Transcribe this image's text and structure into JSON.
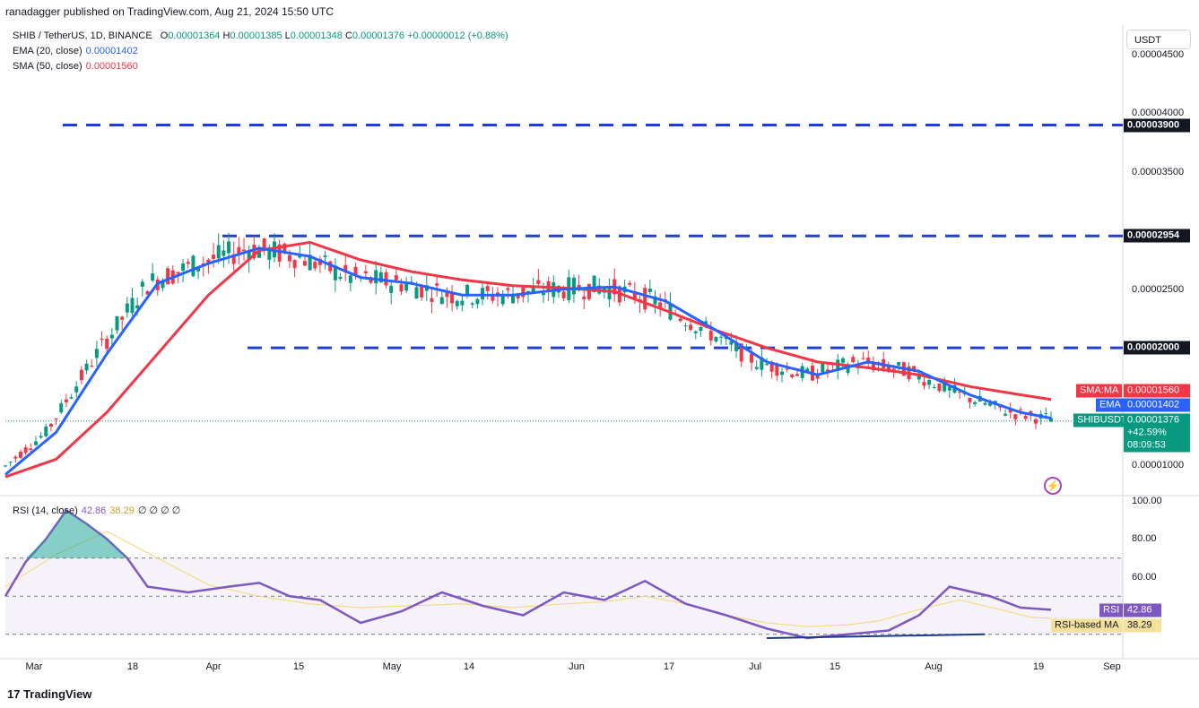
{
  "header": {
    "published": "ranadagger published on TradingView.com, Aug 21, 2024 15:50 UTC"
  },
  "legend": {
    "symbol": "SHIB / TetherUS, 1D, BINANCE",
    "o_label": "O",
    "o": "0.00001364",
    "h_label": "H",
    "h": "0.00001385",
    "l_label": "L",
    "l": "0.00001348",
    "c_label": "C",
    "c": "0.00001376",
    "change": "+0.00000012 (+0.88%)",
    "ema_label": "EMA (20, close)",
    "ema_value": "0.00001402",
    "sma_label": "SMA (50, close)",
    "sma_value": "0.00001560",
    "rsi_label": "RSI (14, close)",
    "rsi_value": "42.86",
    "rsi_ma_value": "38.29",
    "rsi_extra": "∅ ∅ ∅ ∅"
  },
  "currency_button": "USDT",
  "price_axis": [
    "0.00004500",
    "0.00004000",
    "0.00003500",
    "0.00002500",
    "0.00001000"
  ],
  "rsi_axis": [
    "100.00",
    "80.00",
    "60.00"
  ],
  "level_tags": [
    "0.00003900",
    "0.00002954",
    "0.00002000"
  ],
  "value_tags": {
    "sma_name": "SMA:MA",
    "sma": "0.00001560",
    "ema_name": "EMA",
    "ema": "0.00001402",
    "sym_name": "SHIBUSDT",
    "sym": "0.00001376",
    "sym_change": "+42.59%",
    "countdown": "08:09:53",
    "rsi_name": "RSI",
    "rsi": "42.86",
    "rsima_name": "RSI-based MA",
    "rsima": "38.29"
  },
  "x_axis": [
    "Mar",
    "18",
    "Apr",
    "15",
    "May",
    "14",
    "Jun",
    "17",
    "Jul",
    "15",
    "Aug",
    "19",
    "Sep"
  ],
  "footer": {
    "brand": "TradingView"
  },
  "colors": {
    "up": "#089981",
    "down": "#f23645",
    "ema": "#2962ff",
    "sma": "#f23645",
    "level": "#1e3fd0",
    "rsi": "#7e57c2",
    "rsi_ma": "#f5d76e"
  },
  "chart_data": {
    "type": "candlestick",
    "title": "SHIB / TetherUS, 1D, BINANCE",
    "y_unit": "USDT",
    "horizontal_levels": [
      3.9e-05,
      2.954e-05,
      2e-05
    ],
    "ema_20_last": 1.402e-05,
    "sma_50_last": 1.56e-05,
    "last_close": 1.376e-05,
    "rsi_levels": [
      70,
      50,
      30
    ],
    "rsi_last": 42.86,
    "rsi_ma_last": 38.29,
    "ema_path": [
      [
        0,
        9.2e-06
      ],
      [
        10,
        1.28e-05
      ],
      [
        20,
        1.95e-05
      ],
      [
        30,
        2.55e-05
      ],
      [
        40,
        2.72e-05
      ],
      [
        50,
        2.85e-05
      ],
      [
        60,
        2.78e-05
      ],
      [
        70,
        2.6e-05
      ],
      [
        80,
        2.55e-05
      ],
      [
        90,
        2.45e-05
      ],
      [
        100,
        2.45e-05
      ],
      [
        110,
        2.5e-05
      ],
      [
        120,
        2.52e-05
      ],
      [
        130,
        2.4e-05
      ],
      [
        140,
        2.15e-05
      ],
      [
        150,
        1.88e-05
      ],
      [
        160,
        1.77e-05
      ],
      [
        170,
        1.88e-05
      ],
      [
        180,
        1.8e-05
      ],
      [
        190,
        1.6e-05
      ],
      [
        200,
        1.45e-05
      ],
      [
        206,
        1.4e-05
      ]
    ],
    "sma_path": [
      [
        0,
        9e-06
      ],
      [
        10,
        1.05e-05
      ],
      [
        20,
        1.45e-05
      ],
      [
        30,
        1.95e-05
      ],
      [
        40,
        2.45e-05
      ],
      [
        50,
        2.83e-05
      ],
      [
        60,
        2.9e-05
      ],
      [
        70,
        2.75e-05
      ],
      [
        80,
        2.65e-05
      ],
      [
        90,
        2.58e-05
      ],
      [
        100,
        2.53e-05
      ],
      [
        110,
        2.51e-05
      ],
      [
        120,
        2.48e-05
      ],
      [
        130,
        2.32e-05
      ],
      [
        140,
        2.15e-05
      ],
      [
        150,
        2e-05
      ],
      [
        160,
        1.88e-05
      ],
      [
        170,
        1.83e-05
      ],
      [
        180,
        1.77e-05
      ],
      [
        190,
        1.67e-05
      ],
      [
        200,
        1.6e-05
      ],
      [
        206,
        1.56e-05
      ]
    ],
    "rsi_path": [
      [
        0,
        50
      ],
      [
        4,
        68
      ],
      [
        8,
        80
      ],
      [
        12,
        95
      ],
      [
        16,
        88
      ],
      [
        20,
        80
      ],
      [
        24,
        70
      ],
      [
        28,
        55
      ],
      [
        36,
        52
      ],
      [
        44,
        55
      ],
      [
        50,
        57
      ],
      [
        56,
        50
      ],
      [
        62,
        48
      ],
      [
        70,
        36
      ],
      [
        78,
        42
      ],
      [
        86,
        52
      ],
      [
        94,
        45
      ],
      [
        102,
        40
      ],
      [
        110,
        52
      ],
      [
        118,
        48
      ],
      [
        126,
        58
      ],
      [
        134,
        46
      ],
      [
        142,
        40
      ],
      [
        150,
        33
      ],
      [
        158,
        28
      ],
      [
        166,
        30
      ],
      [
        174,
        32
      ],
      [
        180,
        40
      ],
      [
        186,
        55
      ],
      [
        194,
        50
      ],
      [
        200,
        44
      ],
      [
        206,
        42.86
      ]
    ],
    "rsi_ma_path": [
      [
        0,
        55
      ],
      [
        10,
        72
      ],
      [
        20,
        84
      ],
      [
        30,
        70
      ],
      [
        40,
        56
      ],
      [
        50,
        50
      ],
      [
        60,
        46
      ],
      [
        70,
        44
      ],
      [
        80,
        45
      ],
      [
        90,
        46
      ],
      [
        100,
        44
      ],
      [
        110,
        46
      ],
      [
        118,
        47
      ],
      [
        126,
        50
      ],
      [
        134,
        46
      ],
      [
        142,
        40
      ],
      [
        150,
        36
      ],
      [
        158,
        34
      ],
      [
        166,
        35
      ],
      [
        172,
        37
      ],
      [
        180,
        43
      ],
      [
        188,
        48
      ],
      [
        196,
        43
      ],
      [
        202,
        39
      ],
      [
        206,
        38.29
      ]
    ],
    "x_tick_labels": [
      "Mar",
      "18",
      "Apr",
      "15",
      "May",
      "14",
      "Jun",
      "17",
      "Jul",
      "15",
      "Aug",
      "19",
      "Sep"
    ]
  }
}
